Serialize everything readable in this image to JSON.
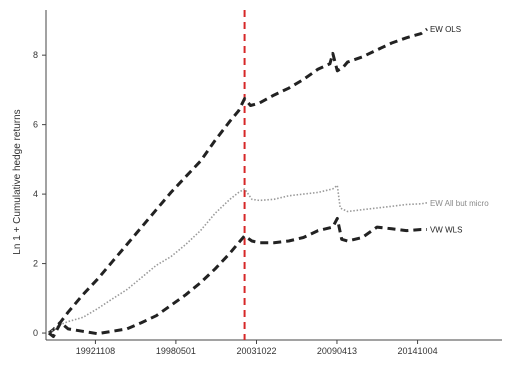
{
  "chart_data": {
    "type": "line",
    "title": "",
    "xlabel": "",
    "ylabel": "Ln 1 + Cumulative hedge returns",
    "x_ticks": [
      {
        "label": "19921108",
        "x": 1992.86
      },
      {
        "label": "19980501",
        "x": 1998.33
      },
      {
        "label": "20031022",
        "x": 2003.81
      },
      {
        "label": "20090413",
        "x": 2009.28
      },
      {
        "label": "20141004",
        "x": 2014.76
      }
    ],
    "xlim": [
      1989.5,
      2020.5
    ],
    "y_ticks": [
      0,
      2,
      4,
      6,
      8
    ],
    "ylim": [
      -0.2,
      9.3
    ],
    "grid": false,
    "legend": "end-of-line labels",
    "vline": {
      "x": 2003.0,
      "color": "#d62728",
      "style": "dashed"
    },
    "series": [
      {
        "name": "EW OLS",
        "color": "#222222",
        "style": "dashed-thick",
        "points": [
          [
            1989.7,
            0.0
          ],
          [
            1990.0,
            0.1
          ],
          [
            1990.5,
            0.32
          ],
          [
            1991.0,
            0.6
          ],
          [
            1992.0,
            1.1
          ],
          [
            1993.0,
            1.55
          ],
          [
            1994.0,
            2.05
          ],
          [
            1995.0,
            2.55
          ],
          [
            1996.0,
            3.05
          ],
          [
            1997.0,
            3.55
          ],
          [
            1998.0,
            4.05
          ],
          [
            1999.0,
            4.5
          ],
          [
            2000.0,
            4.95
          ],
          [
            2001.0,
            5.55
          ],
          [
            2002.0,
            6.1
          ],
          [
            2002.6,
            6.4
          ],
          [
            2003.0,
            6.75
          ],
          [
            2003.4,
            6.55
          ],
          [
            2004.0,
            6.62
          ],
          [
            2005.0,
            6.85
          ],
          [
            2006.0,
            7.05
          ],
          [
            2007.0,
            7.3
          ],
          [
            2008.0,
            7.6
          ],
          [
            2008.8,
            7.75
          ],
          [
            2009.0,
            8.05
          ],
          [
            2009.3,
            7.55
          ],
          [
            2009.7,
            7.65
          ],
          [
            2010.0,
            7.8
          ],
          [
            2011.0,
            7.95
          ],
          [
            2012.0,
            8.15
          ],
          [
            2013.0,
            8.35
          ],
          [
            2014.0,
            8.5
          ],
          [
            2015.0,
            8.62
          ],
          [
            2015.4,
            8.75
          ]
        ]
      },
      {
        "name": "EW All but micro",
        "color": "#9a9a9a",
        "style": "dotted",
        "points": [
          [
            1989.7,
            0.0
          ],
          [
            1990.0,
            0.1
          ],
          [
            1990.5,
            0.25
          ],
          [
            1991.0,
            0.33
          ],
          [
            1992.0,
            0.45
          ],
          [
            1993.0,
            0.7
          ],
          [
            1994.0,
            0.98
          ],
          [
            1995.0,
            1.25
          ],
          [
            1996.0,
            1.6
          ],
          [
            1997.0,
            1.95
          ],
          [
            1998.0,
            2.2
          ],
          [
            1999.0,
            2.55
          ],
          [
            2000.0,
            2.95
          ],
          [
            2001.0,
            3.45
          ],
          [
            2002.0,
            3.85
          ],
          [
            2002.6,
            4.05
          ],
          [
            2003.0,
            4.15
          ],
          [
            2003.5,
            3.85
          ],
          [
            2004.0,
            3.82
          ],
          [
            2005.0,
            3.85
          ],
          [
            2006.0,
            3.95
          ],
          [
            2007.0,
            4.0
          ],
          [
            2008.0,
            4.05
          ],
          [
            2009.0,
            4.15
          ],
          [
            2009.3,
            4.25
          ],
          [
            2009.5,
            3.6
          ],
          [
            2010.0,
            3.5
          ],
          [
            2011.0,
            3.55
          ],
          [
            2012.0,
            3.6
          ],
          [
            2013.0,
            3.65
          ],
          [
            2014.0,
            3.7
          ],
          [
            2015.0,
            3.72
          ],
          [
            2015.4,
            3.75
          ]
        ]
      },
      {
        "name": "VW WLS",
        "color": "#222222",
        "style": "dashed-thick",
        "points": [
          [
            1989.7,
            0.0
          ],
          [
            1990.0,
            -0.1
          ],
          [
            1990.5,
            0.3
          ],
          [
            1991.0,
            0.12
          ],
          [
            1992.0,
            0.05
          ],
          [
            1993.0,
            -0.02
          ],
          [
            1994.0,
            0.05
          ],
          [
            1995.0,
            0.12
          ],
          [
            1996.0,
            0.3
          ],
          [
            1997.0,
            0.5
          ],
          [
            1998.0,
            0.8
          ],
          [
            1999.0,
            1.1
          ],
          [
            2000.0,
            1.45
          ],
          [
            2001.0,
            1.85
          ],
          [
            2002.0,
            2.3
          ],
          [
            2002.6,
            2.6
          ],
          [
            2003.0,
            2.8
          ],
          [
            2003.5,
            2.65
          ],
          [
            2004.0,
            2.6
          ],
          [
            2005.0,
            2.6
          ],
          [
            2006.0,
            2.65
          ],
          [
            2007.0,
            2.75
          ],
          [
            2008.0,
            2.95
          ],
          [
            2009.0,
            3.05
          ],
          [
            2009.3,
            3.3
          ],
          [
            2009.6,
            2.7
          ],
          [
            2010.0,
            2.65
          ],
          [
            2011.0,
            2.75
          ],
          [
            2012.0,
            3.05
          ],
          [
            2013.0,
            3.0
          ],
          [
            2014.0,
            2.95
          ],
          [
            2015.0,
            2.98
          ],
          [
            2015.4,
            2.98
          ]
        ]
      }
    ]
  }
}
